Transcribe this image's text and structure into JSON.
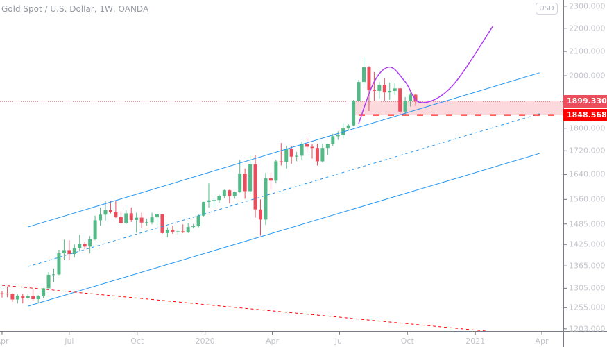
{
  "header": {
    "title": "Gold Spot / U.S. Dollar, 1W, OANDA",
    "currency_button": "USD"
  },
  "colors": {
    "up": "#53b987",
    "down": "#eb4d5c",
    "channel": "#2196f3",
    "trendline": "#ff0000",
    "curve": "#b03bf5",
    "zone": "#fbd0d4",
    "last_price_bg": "#eb4d5c",
    "level_bg": "#ff0000"
  },
  "y_axis": {
    "scale": "log",
    "ticks": [
      "2300.000",
      "2200.000",
      "2100.000",
      "2000.000",
      "1800.000",
      "1720.000",
      "1640.000",
      "1560.000",
      "1485.000",
      "1425.000",
      "1365.000",
      "1305.000",
      "1255.000",
      "1203.000"
    ]
  },
  "x_axis": {
    "ticks": [
      {
        "label": "Apr",
        "date": "2019-04-01"
      },
      {
        "label": "Jul",
        "date": "2019-07-01"
      },
      {
        "label": "Oct",
        "date": "2019-10-01"
      },
      {
        "label": "2020",
        "date": "2020-01-01"
      },
      {
        "label": "Apr",
        "date": "2020-04-01"
      },
      {
        "label": "Jul",
        "date": "2020-07-01"
      },
      {
        "label": "Oct",
        "date": "2020-10-01"
      },
      {
        "label": "2021",
        "date": "2021-01-01"
      },
      {
        "label": "Apr",
        "date": "2021-04-01"
      }
    ]
  },
  "price_labels": {
    "last_price": "1899.330",
    "level": "1848.568"
  },
  "chart_data": {
    "type": "candlestick",
    "interval": "1W",
    "columns": [
      "date",
      "open",
      "high",
      "low",
      "close"
    ],
    "candles": [
      [
        "2019-04-01",
        1292,
        1298,
        1281,
        1291
      ],
      [
        "2019-04-08",
        1291,
        1310,
        1282,
        1290
      ],
      [
        "2019-04-15",
        1290,
        1292,
        1270,
        1276
      ],
      [
        "2019-04-22",
        1276,
        1289,
        1266,
        1286
      ],
      [
        "2019-04-29",
        1286,
        1290,
        1266,
        1279
      ],
      [
        "2019-05-06",
        1279,
        1290,
        1278,
        1285
      ],
      [
        "2019-05-13",
        1285,
        1303,
        1273,
        1277
      ],
      [
        "2019-05-20",
        1277,
        1287,
        1268,
        1284
      ],
      [
        "2019-05-27",
        1284,
        1306,
        1280,
        1305
      ],
      [
        "2019-06-03",
        1305,
        1348,
        1305,
        1341
      ],
      [
        "2019-06-10",
        1341,
        1358,
        1321,
        1342
      ],
      [
        "2019-06-17",
        1342,
        1410,
        1340,
        1400
      ],
      [
        "2019-06-24",
        1400,
        1439,
        1382,
        1409
      ],
      [
        "2019-07-01",
        1409,
        1437,
        1381,
        1398
      ],
      [
        "2019-07-08",
        1398,
        1425,
        1388,
        1415
      ],
      [
        "2019-07-15",
        1415,
        1453,
        1405,
        1426
      ],
      [
        "2019-07-22",
        1426,
        1433,
        1411,
        1419
      ],
      [
        "2019-07-29",
        1419,
        1449,
        1400,
        1440
      ],
      [
        "2019-08-05",
        1440,
        1510,
        1437,
        1496
      ],
      [
        "2019-08-12",
        1496,
        1535,
        1480,
        1513
      ],
      [
        "2019-08-19",
        1513,
        1555,
        1495,
        1527
      ],
      [
        "2019-08-26",
        1527,
        1555,
        1517,
        1520
      ],
      [
        "2019-09-02",
        1520,
        1557,
        1503,
        1506
      ],
      [
        "2019-09-09",
        1506,
        1524,
        1485,
        1488
      ],
      [
        "2019-09-16",
        1488,
        1527,
        1484,
        1517
      ],
      [
        "2019-09-23",
        1517,
        1535,
        1491,
        1497
      ],
      [
        "2019-09-30",
        1497,
        1519,
        1459,
        1504
      ],
      [
        "2019-10-07",
        1504,
        1519,
        1474,
        1489
      ],
      [
        "2019-10-14",
        1489,
        1501,
        1480,
        1490
      ],
      [
        "2019-10-21",
        1490,
        1519,
        1484,
        1505
      ],
      [
        "2019-10-28",
        1505,
        1517,
        1480,
        1514
      ],
      [
        "2019-11-04",
        1514,
        1515,
        1456,
        1458
      ],
      [
        "2019-11-11",
        1458,
        1475,
        1446,
        1468
      ],
      [
        "2019-11-18",
        1468,
        1479,
        1456,
        1462
      ],
      [
        "2019-11-25",
        1462,
        1468,
        1454,
        1463
      ],
      [
        "2019-12-02",
        1463,
        1484,
        1458,
        1460
      ],
      [
        "2019-12-09",
        1460,
        1487,
        1458,
        1476
      ],
      [
        "2019-12-16",
        1476,
        1485,
        1472,
        1478
      ],
      [
        "2019-12-23",
        1478,
        1514,
        1475,
        1510
      ],
      [
        "2019-12-30",
        1510,
        1553,
        1508,
        1552
      ],
      [
        "2020-01-06",
        1552,
        1611,
        1535,
        1557
      ],
      [
        "2020-01-13",
        1557,
        1563,
        1536,
        1558
      ],
      [
        "2020-01-20",
        1558,
        1575,
        1549,
        1571
      ],
      [
        "2020-01-27",
        1571,
        1591,
        1563,
        1589
      ],
      [
        "2020-02-03",
        1589,
        1591,
        1548,
        1570
      ],
      [
        "2020-02-10",
        1570,
        1584,
        1562,
        1583
      ],
      [
        "2020-02-17",
        1583,
        1689,
        1581,
        1643
      ],
      [
        "2020-02-24",
        1643,
        1660,
        1562,
        1586
      ],
      [
        "2020-03-02",
        1586,
        1703,
        1576,
        1674
      ],
      [
        "2020-03-09",
        1674,
        1704,
        1504,
        1529
      ],
      [
        "2020-03-16",
        1529,
        1560,
        1451,
        1498
      ],
      [
        "2020-03-23",
        1498,
        1645,
        1482,
        1628
      ],
      [
        "2020-03-30",
        1628,
        1645,
        1590,
        1620
      ],
      [
        "2020-04-06",
        1620,
        1690,
        1611,
        1684
      ],
      [
        "2020-04-13",
        1684,
        1747,
        1670,
        1682
      ],
      [
        "2020-04-20",
        1682,
        1738,
        1660,
        1728
      ],
      [
        "2020-04-27",
        1728,
        1738,
        1676,
        1700
      ],
      [
        "2020-05-04",
        1700,
        1716,
        1684,
        1703
      ],
      [
        "2020-05-11",
        1703,
        1751,
        1690,
        1743
      ],
      [
        "2020-05-18",
        1743,
        1765,
        1718,
        1734
      ],
      [
        "2020-05-25",
        1734,
        1745,
        1693,
        1730
      ],
      [
        "2020-06-01",
        1730,
        1744,
        1670,
        1684
      ],
      [
        "2020-06-08",
        1684,
        1745,
        1680,
        1730
      ],
      [
        "2020-06-15",
        1730,
        1745,
        1705,
        1743
      ],
      [
        "2020-06-22",
        1743,
        1780,
        1736,
        1771
      ],
      [
        "2020-06-29",
        1771,
        1789,
        1758,
        1775
      ],
      [
        "2020-07-06",
        1775,
        1818,
        1763,
        1799
      ],
      [
        "2020-07-13",
        1799,
        1815,
        1794,
        1810
      ],
      [
        "2020-07-20",
        1810,
        1905,
        1808,
        1902
      ],
      [
        "2020-07-27",
        1902,
        1984,
        1900,
        1975
      ],
      [
        "2020-08-03",
        1975,
        2075,
        1960,
        2035
      ],
      [
        "2020-08-10",
        2035,
        2039,
        1863,
        1944
      ],
      [
        "2020-08-17",
        1944,
        2015,
        1902,
        1940
      ],
      [
        "2020-08-24",
        1940,
        1976,
        1911,
        1964
      ],
      [
        "2020-08-31",
        1964,
        1992,
        1902,
        1934
      ],
      [
        "2020-09-07",
        1934,
        1973,
        1906,
        1940
      ],
      [
        "2020-09-14",
        1940,
        1973,
        1925,
        1950
      ],
      [
        "2020-09-21",
        1950,
        1952,
        1848,
        1861
      ],
      [
        "2020-09-28",
        1861,
        1916,
        1849,
        1900
      ],
      [
        "2020-10-05",
        1900,
        1933,
        1880,
        1925
      ],
      [
        "2020-10-12",
        1925,
        1928,
        1882,
        1899.33
      ]
    ],
    "drawings": {
      "channel_upper": [
        [
          "2019-05-06",
          1476
        ],
        [
          "2021-03-29",
          2012
        ]
      ],
      "channel_middle": [
        [
          "2019-05-06",
          1363
        ],
        [
          "2021-03-29",
          1853
        ]
      ],
      "channel_lower": [
        [
          "2019-05-06",
          1259
        ],
        [
          "2021-03-29",
          1711
        ]
      ],
      "red_trendline": [
        [
          "2019-04-01",
          1313
        ],
        [
          "2021-01-18",
          1197
        ]
      ],
      "support_level": {
        "price": 1848.568,
        "from": "2020-07-27"
      },
      "zone": {
        "from": "2020-07-20",
        "low": 1848.568,
        "high": 1899.33
      },
      "last_price_line": 1899.33,
      "projection_curve": [
        [
          "2020-07-27",
          1817
        ],
        [
          "2020-08-17",
          1976
        ],
        [
          "2020-09-07",
          2035
        ],
        [
          "2020-09-28",
          1976
        ],
        [
          "2020-10-19",
          1895
        ],
        [
          "2020-11-30",
          1957
        ],
        [
          "2021-01-25",
          2210
        ]
      ]
    }
  }
}
